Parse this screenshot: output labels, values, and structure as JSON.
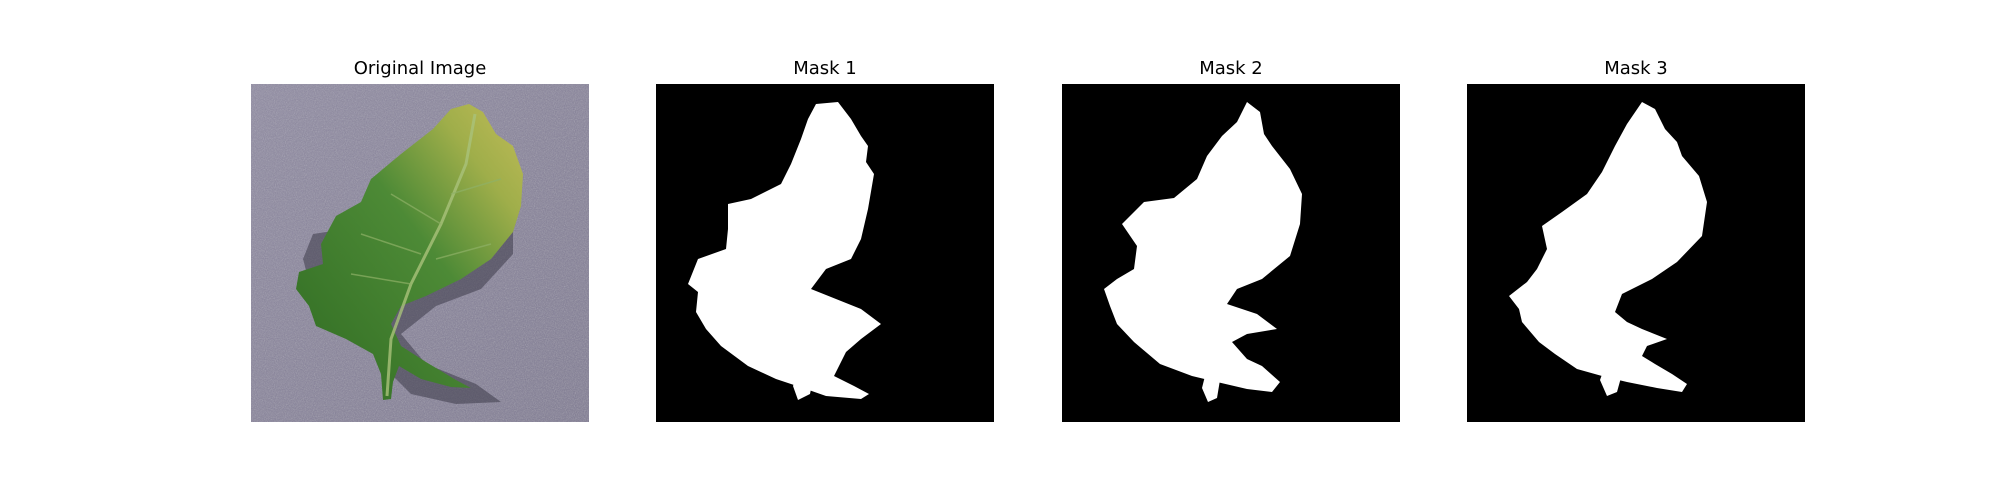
{
  "figure": {
    "panels": [
      {
        "title": "Original Image",
        "kind": "photo"
      },
      {
        "title": "Mask 1",
        "kind": "mask"
      },
      {
        "title": "Mask 2",
        "kind": "mask"
      },
      {
        "title": "Mask 3",
        "kind": "mask"
      }
    ],
    "colors": {
      "background": "#ffffff",
      "mask_background": "#000000",
      "mask_foreground": "#ffffff",
      "surface": "#8e89a1",
      "leaf_dark": "#3d7a2c",
      "leaf_light": "#b9b552"
    }
  }
}
